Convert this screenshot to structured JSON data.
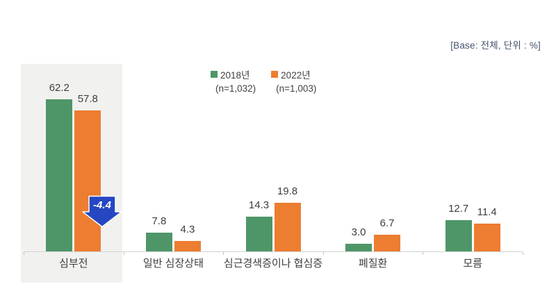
{
  "base_note": "[Base: 전체, 단위 : %]",
  "legend": [
    {
      "label": "2018년",
      "sub": "(n=1,032)",
      "color": "#4e9668"
    },
    {
      "label": "2022년",
      "sub": "(n=1,003)",
      "color": "#ed7d31"
    }
  ],
  "annotation": {
    "value": "-4.4",
    "color": "#2547c2"
  },
  "chart_data": {
    "type": "bar",
    "categories": [
      "심부전",
      "일반 심장상태",
      "심근경색증이나 협심증",
      "폐질환",
      "모름"
    ],
    "series": [
      {
        "name": "2018년",
        "color": "#4e9668",
        "values": [
          62.2,
          7.8,
          14.3,
          3.0,
          12.7
        ]
      },
      {
        "name": "2022년",
        "color": "#ed7d31",
        "values": [
          57.8,
          4.3,
          19.8,
          6.7,
          11.4
        ]
      }
    ],
    "ylim": [
      0,
      70
    ],
    "unit": "%",
    "value_labels": true,
    "legend_position": "top",
    "highlight_category": "심부전",
    "annotations": [
      {
        "category": "심부전",
        "series": "2022년",
        "text": "-4.4",
        "shape": "down-arrow"
      }
    ]
  }
}
